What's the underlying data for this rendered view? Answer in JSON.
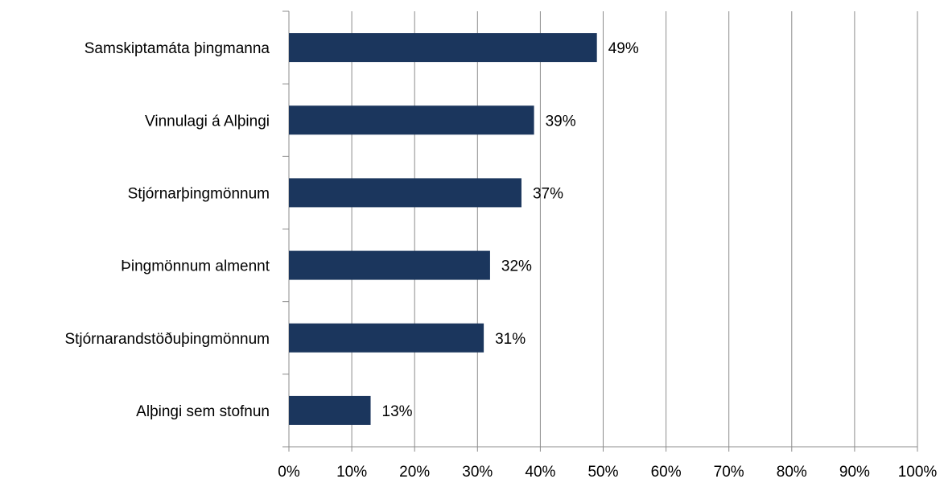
{
  "chart_data": {
    "type": "bar",
    "orientation": "horizontal",
    "categories": [
      "Samskiptamáta þingmanna",
      "Vinnulagi á Alþingi",
      "Stjórnarþingmönnum",
      "Þingmönnum almennt",
      "Stjórnarandstöðuþingmönnum",
      "Alþingi sem stofnun"
    ],
    "values": [
      49,
      39,
      37,
      32,
      31,
      13
    ],
    "data_labels": [
      "49%",
      "39%",
      "37%",
      "32%",
      "31%",
      "13%"
    ],
    "xlim": [
      0,
      100
    ],
    "x_ticks": [
      "0%",
      "10%",
      "20%",
      "30%",
      "40%",
      "50%",
      "60%",
      "70%",
      "80%",
      "90%",
      "100%"
    ],
    "grid": "vertical",
    "legend": "none",
    "colors": {
      "bar": "#1b365d",
      "grid": "#8c8c8c",
      "axis": "#8c8c8c"
    }
  }
}
